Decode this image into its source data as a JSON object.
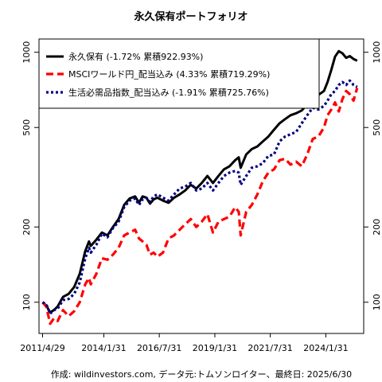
{
  "chart_data": {
    "type": "line",
    "title": "永久保有ポートフォリオ",
    "caption": "作成: wildinvestors.com, データ元:トムソンロイター、最終日: 2025/6/30",
    "y_scale": "log",
    "ylim": [
      75,
      1130
    ],
    "xlim": [
      "2011-03-01",
      "2025-10-15"
    ],
    "yticks": [
      {
        "value": 100,
        "label": "100"
      },
      {
        "value": 200,
        "label": "200"
      },
      {
        "value": 500,
        "label": "500"
      },
      {
        "value": 1000,
        "label": "1000"
      }
    ],
    "xticks": [
      {
        "date": "2011-04-29",
        "label": "2011/4/29"
      },
      {
        "date": "2014-01-31",
        "label": "2014/1/31"
      },
      {
        "date": "2016-07-31",
        "label": "2016/7/31"
      },
      {
        "date": "2019-01-31",
        "label": "2019/1/31"
      },
      {
        "date": "2021-07-31",
        "label": "2021/7/31"
      },
      {
        "date": "2024-01-31",
        "label": "2024/1/31"
      }
    ],
    "grid": false,
    "legend_position": "top-left",
    "series": [
      {
        "name": "永久保有",
        "legend": "永久保有 (-1.72% 累積922.93%)",
        "color": "#000000",
        "style": "solid",
        "points": [
          [
            "2011-04-29",
            100
          ],
          [
            "2011-06-30",
            97
          ],
          [
            "2011-08-31",
            91
          ],
          [
            "2011-10-31",
            93
          ],
          [
            "2011-12-31",
            96
          ],
          [
            "2012-03-31",
            105
          ],
          [
            "2012-06-30",
            108
          ],
          [
            "2012-09-30",
            115
          ],
          [
            "2012-12-31",
            130
          ],
          [
            "2013-03-31",
            160
          ],
          [
            "2013-05-31",
            175
          ],
          [
            "2013-06-30",
            168
          ],
          [
            "2013-09-30",
            178
          ],
          [
            "2013-12-31",
            190
          ],
          [
            "2014-03-31",
            185
          ],
          [
            "2014-06-30",
            200
          ],
          [
            "2014-09-30",
            215
          ],
          [
            "2014-12-31",
            245
          ],
          [
            "2015-03-31",
            260
          ],
          [
            "2015-06-30",
            265
          ],
          [
            "2015-08-31",
            250
          ],
          [
            "2015-10-31",
            265
          ],
          [
            "2015-12-31",
            262
          ],
          [
            "2016-02-29",
            248
          ],
          [
            "2016-04-30",
            258
          ],
          [
            "2016-06-30",
            262
          ],
          [
            "2016-09-30",
            255
          ],
          [
            "2016-12-31",
            250
          ],
          [
            "2017-03-31",
            262
          ],
          [
            "2017-06-30",
            270
          ],
          [
            "2017-09-30",
            280
          ],
          [
            "2017-12-31",
            295
          ],
          [
            "2018-03-31",
            285
          ],
          [
            "2018-06-30",
            300
          ],
          [
            "2018-09-30",
            320
          ],
          [
            "2018-12-31",
            300
          ],
          [
            "2019-03-31",
            320
          ],
          [
            "2019-06-30",
            340
          ],
          [
            "2019-09-30",
            350
          ],
          [
            "2019-12-31",
            370
          ],
          [
            "2020-02-29",
            380
          ],
          [
            "2020-03-31",
            345
          ],
          [
            "2020-06-30",
            390
          ],
          [
            "2020-09-30",
            410
          ],
          [
            "2020-12-31",
            420
          ],
          [
            "2021-03-31",
            440
          ],
          [
            "2021-06-30",
            460
          ],
          [
            "2021-09-30",
            490
          ],
          [
            "2021-12-31",
            520
          ],
          [
            "2022-03-31",
            540
          ],
          [
            "2022-06-30",
            560
          ],
          [
            "2022-09-30",
            570
          ],
          [
            "2022-12-31",
            585
          ],
          [
            "2023-03-31",
            620
          ],
          [
            "2023-06-30",
            650
          ],
          [
            "2023-09-30",
            675
          ],
          [
            "2023-12-31",
            700
          ],
          [
            "2024-02-29",
            760
          ],
          [
            "2024-04-30",
            850
          ],
          [
            "2024-06-30",
            960
          ],
          [
            "2024-08-31",
            1010
          ],
          [
            "2024-10-31",
            990
          ],
          [
            "2024-12-31",
            950
          ],
          [
            "2025-02-28",
            965
          ],
          [
            "2025-04-30",
            940
          ],
          [
            "2025-06-30",
            925
          ]
        ]
      },
      {
        "name": "MSCIワールド円_配当込み",
        "legend": "MSCIワールド円_配当込み (4.33% 累積719.29%)",
        "color": "#ff0000",
        "style": "dashed",
        "points": [
          [
            "2011-04-29",
            100
          ],
          [
            "2011-06-30",
            96
          ],
          [
            "2011-08-31",
            82
          ],
          [
            "2011-10-31",
            86
          ],
          [
            "2011-12-31",
            84
          ],
          [
            "2012-03-31",
            93
          ],
          [
            "2012-06-30",
            88
          ],
          [
            "2012-09-30",
            92
          ],
          [
            "2012-12-31",
            100
          ],
          [
            "2013-03-31",
            118
          ],
          [
            "2013-05-31",
            125
          ],
          [
            "2013-06-30",
            118
          ],
          [
            "2013-09-30",
            130
          ],
          [
            "2013-12-31",
            150
          ],
          [
            "2014-03-31",
            148
          ],
          [
            "2014-06-30",
            155
          ],
          [
            "2014-09-30",
            165
          ],
          [
            "2014-12-31",
            185
          ],
          [
            "2015-03-31",
            190
          ],
          [
            "2015-06-30",
            195
          ],
          [
            "2015-08-31",
            180
          ],
          [
            "2015-10-31",
            175
          ],
          [
            "2015-12-31",
            170
          ],
          [
            "2016-02-29",
            155
          ],
          [
            "2016-04-30",
            158
          ],
          [
            "2016-06-30",
            152
          ],
          [
            "2016-09-30",
            158
          ],
          [
            "2016-12-31",
            180
          ],
          [
            "2017-03-31",
            185
          ],
          [
            "2017-06-30",
            195
          ],
          [
            "2017-09-30",
            205
          ],
          [
            "2017-12-31",
            215
          ],
          [
            "2018-03-31",
            200
          ],
          [
            "2018-06-30",
            210
          ],
          [
            "2018-09-30",
            225
          ],
          [
            "2018-12-31",
            190
          ],
          [
            "2019-03-31",
            210
          ],
          [
            "2019-06-30",
            215
          ],
          [
            "2019-09-30",
            220
          ],
          [
            "2019-12-31",
            240
          ],
          [
            "2020-02-29",
            230
          ],
          [
            "2020-03-31",
            185
          ],
          [
            "2020-06-30",
            230
          ],
          [
            "2020-09-30",
            245
          ],
          [
            "2020-12-31",
            270
          ],
          [
            "2021-03-31",
            305
          ],
          [
            "2021-06-30",
            330
          ],
          [
            "2021-09-30",
            340
          ],
          [
            "2021-12-31",
            370
          ],
          [
            "2022-03-31",
            375
          ],
          [
            "2022-06-30",
            355
          ],
          [
            "2022-09-30",
            365
          ],
          [
            "2022-12-31",
            350
          ],
          [
            "2023-03-31",
            390
          ],
          [
            "2023-06-30",
            450
          ],
          [
            "2023-09-30",
            460
          ],
          [
            "2023-12-31",
            500
          ],
          [
            "2024-02-29",
            560
          ],
          [
            "2024-04-30",
            590
          ],
          [
            "2024-06-30",
            630
          ],
          [
            "2024-08-31",
            580
          ],
          [
            "2024-10-31",
            650
          ],
          [
            "2024-12-31",
            700
          ],
          [
            "2025-02-28",
            680
          ],
          [
            "2025-04-30",
            640
          ],
          [
            "2025-06-30",
            720
          ]
        ]
      },
      {
        "name": "生活必需品指数_配当込み",
        "legend": "生活必需品指数_配当込み (-1.91% 累積725.76%)",
        "color": "#000080",
        "style": "dotted",
        "points": [
          [
            "2011-04-29",
            100
          ],
          [
            "2011-06-30",
            98
          ],
          [
            "2011-08-31",
            90
          ],
          [
            "2011-10-31",
            93
          ],
          [
            "2011-12-31",
            94
          ],
          [
            "2012-03-31",
            102
          ],
          [
            "2012-06-30",
            103
          ],
          [
            "2012-09-30",
            108
          ],
          [
            "2012-12-31",
            120
          ],
          [
            "2013-03-31",
            150
          ],
          [
            "2013-05-31",
            165
          ],
          [
            "2013-06-30",
            158
          ],
          [
            "2013-09-30",
            170
          ],
          [
            "2013-12-31",
            188
          ],
          [
            "2014-03-31",
            182
          ],
          [
            "2014-06-30",
            198
          ],
          [
            "2014-09-30",
            210
          ],
          [
            "2014-12-31",
            240
          ],
          [
            "2015-03-31",
            255
          ],
          [
            "2015-06-30",
            260
          ],
          [
            "2015-08-31",
            245
          ],
          [
            "2015-10-31",
            258
          ],
          [
            "2015-12-31",
            262
          ],
          [
            "2016-02-29",
            252
          ],
          [
            "2016-04-30",
            265
          ],
          [
            "2016-06-30",
            270
          ],
          [
            "2016-09-30",
            262
          ],
          [
            "2016-12-31",
            255
          ],
          [
            "2017-03-31",
            270
          ],
          [
            "2017-06-30",
            285
          ],
          [
            "2017-09-30",
            290
          ],
          [
            "2017-12-31",
            300
          ],
          [
            "2018-03-31",
            280
          ],
          [
            "2018-06-30",
            285
          ],
          [
            "2018-09-30",
            300
          ],
          [
            "2018-12-31",
            280
          ],
          [
            "2019-03-31",
            300
          ],
          [
            "2019-06-30",
            320
          ],
          [
            "2019-09-30",
            330
          ],
          [
            "2019-12-31",
            335
          ],
          [
            "2020-02-29",
            330
          ],
          [
            "2020-03-31",
            295
          ],
          [
            "2020-06-30",
            320
          ],
          [
            "2020-09-30",
            345
          ],
          [
            "2020-12-31",
            350
          ],
          [
            "2021-03-31",
            360
          ],
          [
            "2021-06-30",
            385
          ],
          [
            "2021-09-30",
            390
          ],
          [
            "2021-12-31",
            440
          ],
          [
            "2022-03-31",
            460
          ],
          [
            "2022-06-30",
            470
          ],
          [
            "2022-09-30",
            480
          ],
          [
            "2022-12-31",
            520
          ],
          [
            "2023-03-31",
            560
          ],
          [
            "2023-06-30",
            600
          ],
          [
            "2023-09-30",
            590
          ],
          [
            "2023-12-31",
            610
          ],
          [
            "2024-02-29",
            640
          ],
          [
            "2024-04-30",
            680
          ],
          [
            "2024-06-30",
            700
          ],
          [
            "2024-08-31",
            740
          ],
          [
            "2024-10-31",
            760
          ],
          [
            "2024-12-31",
            740
          ],
          [
            "2025-02-28",
            770
          ],
          [
            "2025-04-30",
            740
          ],
          [
            "2025-06-30",
            726
          ]
        ]
      }
    ]
  }
}
